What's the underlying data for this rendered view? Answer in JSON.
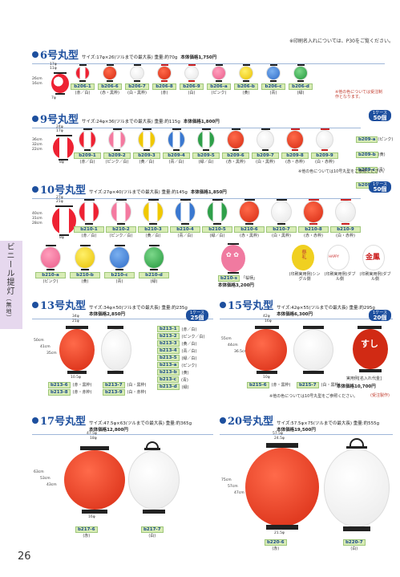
{
  "top_note": "※印刷名入れについては、P30をご覧ください。",
  "side_tab": {
    "label": "ビニール提灯",
    "sub": "（無地）"
  },
  "page_number": "26",
  "sections": {
    "s6": {
      "title": "6号丸型",
      "spec": "サイズ:17φ×26(ツルまでの最大長) 重量:約70g",
      "price": "本体価格1,750円",
      "dims": {
        "top": "17φ",
        "in": "11φ",
        "h": "26cm",
        "h2": "16cm",
        "bot": "7φ"
      },
      "items": [
        {
          "code": "b206-1",
          "cap": "(赤／白)"
        },
        {
          "code": "b206-6",
          "cap": "(赤・黒枠)"
        },
        {
          "code": "b206-7",
          "cap": "(白・黒枠)"
        },
        {
          "code": "b206-8",
          "cap": "(赤)"
        },
        {
          "code": "b206-9",
          "cap": "(白)"
        },
        {
          "code": "b206-a",
          "cap": "(ピンク)"
        },
        {
          "code": "b206-b",
          "cap": "(黄)"
        },
        {
          "code": "b206-c",
          "cap": "(青)"
        },
        {
          "code": "b206-d",
          "cap": "(緑)"
        }
      ],
      "note": "※他の色については受注制作となります。"
    },
    "s9": {
      "title": "9号丸型",
      "spec": "サイズ:24φ×36(ツルまでの最大長) 重量:約115g",
      "price": "本体価格1,800円",
      "badge": {
        "unit": "1ケース",
        "qty": "50個"
      },
      "items": [
        {
          "code": "b209-1",
          "cap": "(赤／白)"
        },
        {
          "code": "b209-2",
          "cap": "(ピンク／白)"
        },
        {
          "code": "b209-3",
          "cap": "(黄／白)"
        },
        {
          "code": "b209-4",
          "cap": "(青／白)"
        },
        {
          "code": "b209-5",
          "cap": "(緑／白)"
        },
        {
          "code": "b209-6",
          "cap": "(赤・黒枠)"
        },
        {
          "code": "b209-7",
          "cap": "(白・黒枠)"
        },
        {
          "code": "b209-8",
          "cap": "(赤・赤枠)"
        },
        {
          "code": "b209-9",
          "cap": "(白・赤枠)"
        }
      ],
      "colors": [
        "b209-a (ピンク)",
        "b209-b (黄)",
        "b209-c (青)",
        "b209-d (緑)"
      ],
      "note": "※他の色については10号丸型をご参照ください。"
    },
    "s10": {
      "title": "10号丸型",
      "spec": "サイズ:27φ×40(ツルまでの最大長) 重量:約145g",
      "price": "本体価格1,850円",
      "badge": {
        "unit": "1ケース",
        "qty": "50個"
      },
      "items_row1": [
        {
          "code": "b210-1",
          "cap": "(赤／白)"
        },
        {
          "code": "b210-2",
          "cap": "(ピンク／白)"
        },
        {
          "code": "b210-3",
          "cap": "(黄／白)"
        },
        {
          "code": "b210-4",
          "cap": "(青／白)"
        },
        {
          "code": "b210-5",
          "cap": "(緑／白)"
        },
        {
          "code": "b210-6",
          "cap": "(赤・黒枠)"
        },
        {
          "code": "b210-7",
          "cap": "(白・黒枠)"
        },
        {
          "code": "b210-8",
          "cap": "(赤・赤枠)"
        },
        {
          "code": "b210-9",
          "cap": "(白・赤枠)"
        }
      ],
      "items_row2": [
        {
          "code": "b210-a",
          "cap": "(ピンク)"
        },
        {
          "code": "b210-b",
          "cap": "(黄)"
        },
        {
          "code": "b210-c",
          "cap": "(青)"
        },
        {
          "code": "b210-d",
          "cap": "(緑)"
        }
      ],
      "special": {
        "code": "b210-s",
        "name": "「桜柄」",
        "price": "本体価格3,200円"
      },
      "examples": [
        "(印刷実用例)シングル側",
        "(印刷実用例)ダブル側",
        "(印刷実用例)ダブル側"
      ]
    },
    "s13": {
      "title": "13号丸型",
      "spec": "サイズ:34φ×50(ツルまでの最大長) 重量:約235g",
      "price": "本体価格2,850円",
      "badge": {
        "unit": "1ケース",
        "qty": "25個"
      },
      "items": [
        {
          "code": "b213-6",
          "cap": "(赤・黒枠)"
        },
        {
          "code": "b213-8",
          "cap": "(赤・赤枠)"
        },
        {
          "code": "b213-7",
          "cap": "(白・黒枠)"
        },
        {
          "code": "b213-9",
          "cap": "(白・赤枠)"
        }
      ],
      "colors": [
        "b213-1 (赤／白)",
        "b213-2 (ピンク／白)",
        "b213-3 (黄／白)",
        "b213-4 (青／白)",
        "b213-5 (緑／白)",
        "b213-a (ピンク)",
        "b213-b (黄)",
        "b213-c (青)",
        "b213-d (緑)"
      ]
    },
    "s15": {
      "title": "15号丸型",
      "spec": "サイズ:42φ×55(ツルまでの最大長) 重量:約295g",
      "price": "本体価格6,300円",
      "badge": {
        "unit": "1ケース",
        "qty": "20個"
      },
      "items": [
        {
          "code": "b215-6",
          "cap": "(赤・黒枠)"
        },
        {
          "code": "b215-7",
          "cap": "(白・黒枠)"
        }
      ],
      "example": "実用例[名入れ代金]",
      "example_price": "本体価格10,700円",
      "note": "※他の色については10号丸型をご参照ください。",
      "note2": "(受注製作)"
    },
    "s17": {
      "title": "17号丸型",
      "spec": "サイズ:47.5φ×63(ツルまでの最大長) 重量:約365g",
      "price": "本体価格12,800円",
      "items": [
        {
          "code": "b217-6",
          "cap": "(赤)"
        },
        {
          "code": "b217-7",
          "cap": "(白)"
        }
      ]
    },
    "s20": {
      "title": "20号丸型",
      "spec": "サイズ:57.5φ×75(ツルまでの最大長) 重量:約555g",
      "price": "本体価格19,500円",
      "items": [
        {
          "code": "b220-6",
          "cap": "(赤)"
        },
        {
          "code": "b220-7",
          "cap": "(白)"
        }
      ]
    }
  },
  "colors": {
    "accent": "#1d4f9e",
    "code_bg": "#d8ecb5",
    "red": "#d9381e",
    "tab": "#e6d8ee"
  }
}
